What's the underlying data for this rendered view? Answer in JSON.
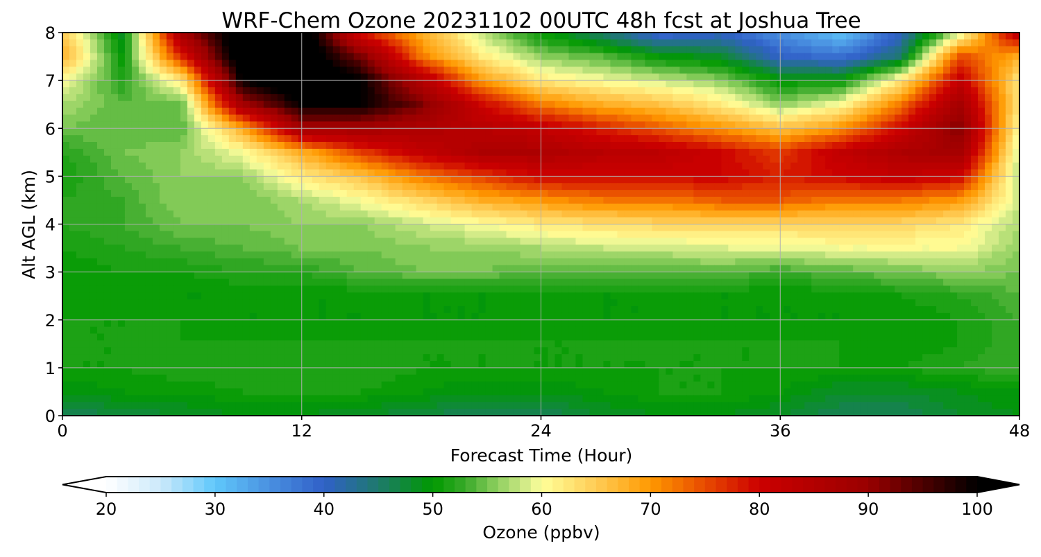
{
  "chart_data": {
    "type": "heatmap",
    "title": "WRF-Chem Ozone  20231102 00UTC 48h fcst at Joshua Tree",
    "xlabel": "Forecast Time (Hour)",
    "ylabel": "Alt AGL (km)",
    "xlim": [
      0,
      48
    ],
    "ylim": [
      0,
      8
    ],
    "xticks": [
      "0",
      "12",
      "24",
      "36",
      "48"
    ],
    "yticks": [
      "0",
      "1",
      "2",
      "3",
      "4",
      "5",
      "6",
      "7",
      "8"
    ],
    "grid": true,
    "x": [
      0,
      3,
      6,
      9,
      12,
      15,
      18,
      21,
      24,
      27,
      30,
      33,
      36,
      39,
      42,
      45,
      48
    ],
    "y": [
      0,
      0.5,
      1,
      1.5,
      2,
      2.5,
      3,
      3.5,
      4,
      4.5,
      5,
      5.5,
      6,
      6.5,
      7,
      7.5,
      8
    ],
    "values": [
      [
        46,
        47,
        48,
        49,
        49,
        48,
        47,
        46,
        46,
        48,
        49,
        49,
        48,
        46,
        46,
        48,
        49
      ],
      [
        49,
        50,
        50,
        51,
        51,
        51,
        50,
        49,
        49,
        50,
        51,
        51,
        50,
        48,
        48,
        49,
        50
      ],
      [
        51,
        51,
        52,
        52,
        52,
        52,
        51,
        51,
        51,
        51,
        51,
        51,
        51,
        51,
        51,
        52,
        53
      ],
      [
        51,
        51,
        51,
        51,
        51,
        51,
        51,
        51,
        51,
        51,
        51,
        51,
        51,
        51,
        50,
        51,
        53
      ],
      [
        51,
        51,
        51,
        50,
        50,
        50,
        50,
        50,
        50,
        50,
        50,
        50,
        50,
        50,
        50,
        51,
        53
      ],
      [
        50,
        50,
        50,
        50,
        50,
        50,
        50,
        50,
        50,
        50,
        50,
        50,
        50,
        50,
        51,
        52,
        54
      ],
      [
        50,
        51,
        51,
        52,
        52,
        54,
        55,
        55,
        54,
        54,
        54,
        54,
        53,
        54,
        55,
        56,
        55
      ],
      [
        51,
        52,
        53,
        54,
        55,
        55,
        56,
        56,
        57,
        58,
        58,
        59,
        59,
        60,
        60,
        60,
        56
      ],
      [
        52,
        53,
        55,
        55,
        56,
        56,
        58,
        60,
        62,
        63,
        64,
        64,
        64,
        64,
        64,
        62,
        57
      ],
      [
        52,
        53,
        56,
        55,
        57,
        60,
        64,
        68,
        70,
        72,
        72,
        74,
        74,
        72,
        72,
        70,
        58
      ],
      [
        51,
        54,
        56,
        56,
        62,
        66,
        72,
        76,
        80,
        80,
        80,
        80,
        78,
        80,
        82,
        80,
        57
      ],
      [
        52,
        55,
        56,
        60,
        68,
        76,
        82,
        86,
        86,
        84,
        83,
        80,
        76,
        82,
        86,
        88,
        58
      ],
      [
        55,
        54,
        54,
        68,
        88,
        88,
        86,
        84,
        82,
        78,
        74,
        70,
        66,
        70,
        80,
        92,
        60
      ],
      [
        57,
        54,
        55,
        88,
        100,
        100,
        92,
        80,
        72,
        68,
        66,
        62,
        56,
        60,
        72,
        88,
        62
      ],
      [
        60,
        52,
        62,
        100,
        105,
        100,
        85,
        70,
        62,
        60,
        58,
        56,
        50,
        50,
        62,
        82,
        62
      ],
      [
        68,
        50,
        78,
        105,
        105,
        92,
        72,
        62,
        56,
        54,
        50,
        48,
        40,
        38,
        45,
        75,
        68
      ],
      [
        65,
        48,
        88,
        105,
        105,
        78,
        68,
        58,
        50,
        45,
        38,
        40,
        35,
        30,
        40,
        58,
        85
      ]
    ],
    "colorbar": {
      "label": "Ozone  (ppbv)",
      "min": 20,
      "max": 100,
      "step": 1,
      "extend": "both",
      "ticks": [
        "20",
        "30",
        "40",
        "50",
        "60",
        "70",
        "80",
        "90",
        "100"
      ],
      "anchors": [
        [
          20,
          "#ffffff"
        ],
        [
          25,
          "#cce9fa"
        ],
        [
          30,
          "#5fc8fb"
        ],
        [
          35,
          "#4a90e0"
        ],
        [
          40,
          "#3060c8"
        ],
        [
          45,
          "#1e7a6c"
        ],
        [
          50,
          "#009900"
        ],
        [
          53,
          "#3aaa2a"
        ],
        [
          56,
          "#90d060"
        ],
        [
          59,
          "#e0f090"
        ],
        [
          60,
          "#ffff99"
        ],
        [
          65,
          "#ffcc55"
        ],
        [
          70,
          "#ff9900"
        ],
        [
          75,
          "#e84a00"
        ],
        [
          80,
          "#cc0000"
        ],
        [
          90,
          "#990000"
        ],
        [
          100,
          "#000000"
        ]
      ]
    }
  }
}
